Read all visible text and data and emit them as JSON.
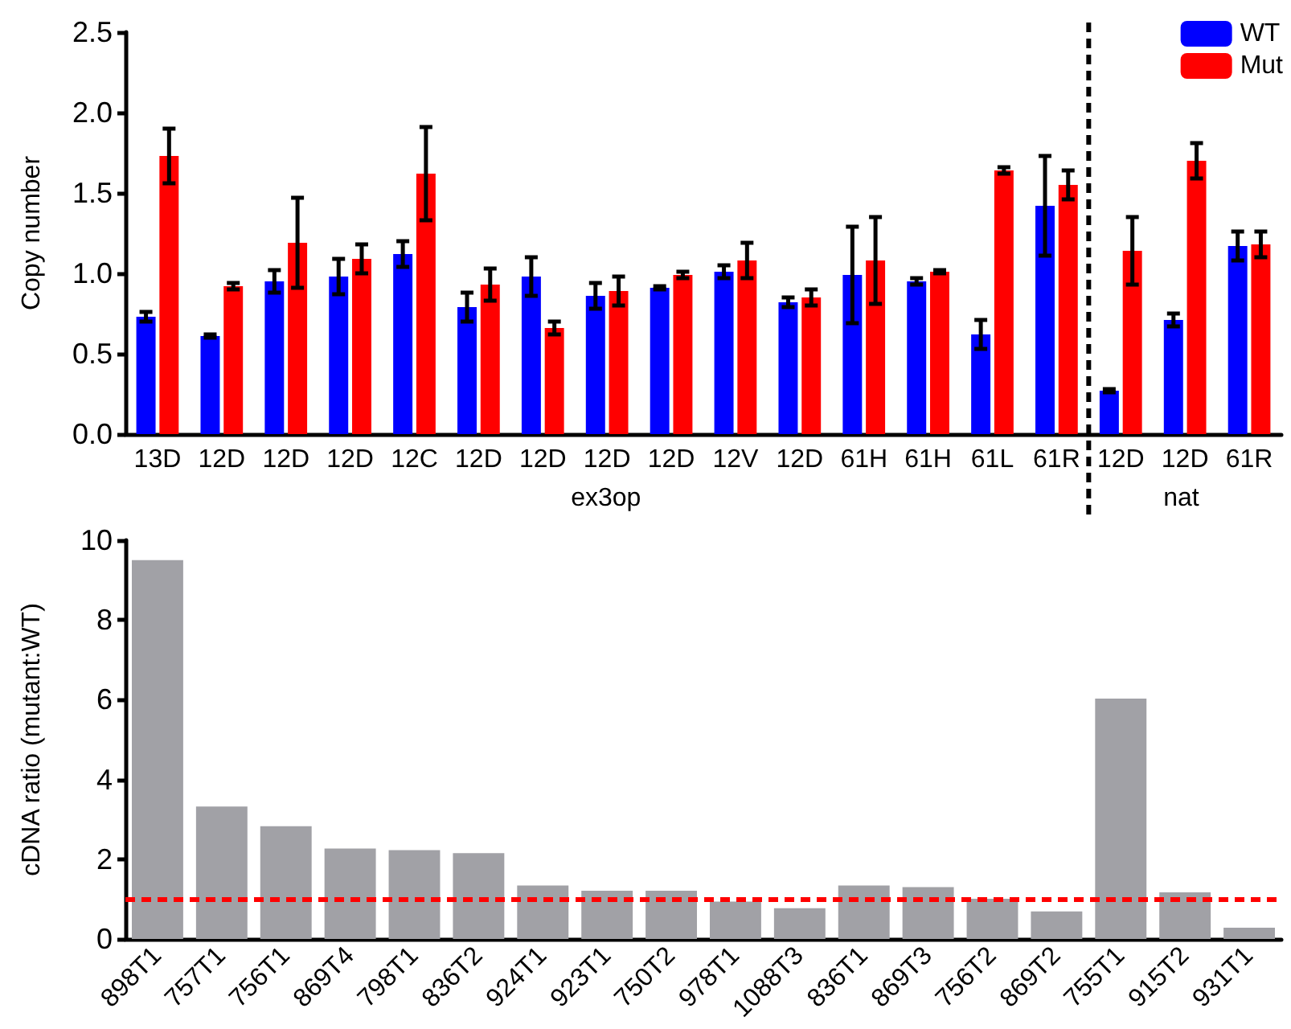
{
  "chart_data": [
    {
      "type": "bar",
      "ylabel": "Copy number",
      "categories": [
        "13D",
        "12D",
        "12D",
        "12D",
        "12C",
        "12D",
        "12D",
        "12D",
        "12D",
        "12V",
        "12D",
        "61H",
        "61H",
        "61L",
        "61R",
        "12D",
        "12D",
        "61R"
      ],
      "series": [
        {
          "name": "WT",
          "color": "#0000ff",
          "values": [
            0.73,
            0.61,
            0.95,
            0.98,
            1.12,
            0.79,
            0.98,
            0.86,
            0.91,
            1.01,
            0.82,
            0.99,
            0.95,
            0.62,
            1.42,
            0.27,
            0.71,
            1.17
          ],
          "errors": [
            0.03,
            0.01,
            0.07,
            0.11,
            0.08,
            0.09,
            0.12,
            0.08,
            0.01,
            0.04,
            0.03,
            0.3,
            0.02,
            0.09,
            0.31,
            0.01,
            0.04,
            0.09
          ]
        },
        {
          "name": "Mut",
          "color": "#ff0000",
          "values": [
            1.73,
            0.92,
            1.19,
            1.09,
            1.62,
            0.93,
            0.66,
            0.89,
            0.99,
            1.08,
            0.85,
            1.08,
            1.01,
            1.64,
            1.55,
            1.14,
            1.7,
            1.18
          ],
          "errors": [
            0.17,
            0.02,
            0.28,
            0.09,
            0.29,
            0.1,
            0.04,
            0.09,
            0.02,
            0.11,
            0.05,
            0.27,
            0.01,
            0.02,
            0.09,
            0.21,
            0.11,
            0.08
          ]
        }
      ],
      "ylim": [
        0,
        2.5
      ],
      "yticks": [
        {
          "value": 0,
          "label": "0.0"
        },
        {
          "value": 0.5,
          "label": "0.5"
        },
        {
          "value": 1,
          "label": "1.0"
        },
        {
          "value": 1.5,
          "label": "1.5"
        },
        {
          "value": 2,
          "label": "2.0"
        },
        {
          "value": 2.5,
          "label": "2.5"
        }
      ],
      "annotations": [
        "ex3op",
        "nat"
      ],
      "legend": "top right",
      "grid": false
    },
    {
      "type": "bar",
      "ylabel": "cDNA ratio (mutant:WT)",
      "categories": [
        "898T1",
        "757T1",
        "756T1",
        "869T4",
        "798T1",
        "836T2",
        "924T1",
        "923T1",
        "750T2",
        "978T1",
        "1088T3",
        "836T1",
        "869T3",
        "756T2",
        "869T2",
        "755T1",
        "915T2",
        "931T1"
      ],
      "series": [
        {
          "color": "#a1a1a6",
          "values": [
            9.5,
            3.32,
            2.83,
            2.27,
            2.23,
            2.15,
            1.34,
            1.21,
            1.21,
            0.94,
            0.77,
            1.34,
            1.3,
            1.01,
            0.69,
            6.03,
            1.17,
            0.28
          ]
        }
      ],
      "ylim": [
        0,
        10
      ],
      "yticks": [
        0,
        2,
        4,
        6,
        8,
        10
      ],
      "ref_lines": [
        {
          "axis": "y",
          "value": 1,
          "color": "#ff0000",
          "line_style": "dashed"
        }
      ],
      "grid": false
    }
  ]
}
